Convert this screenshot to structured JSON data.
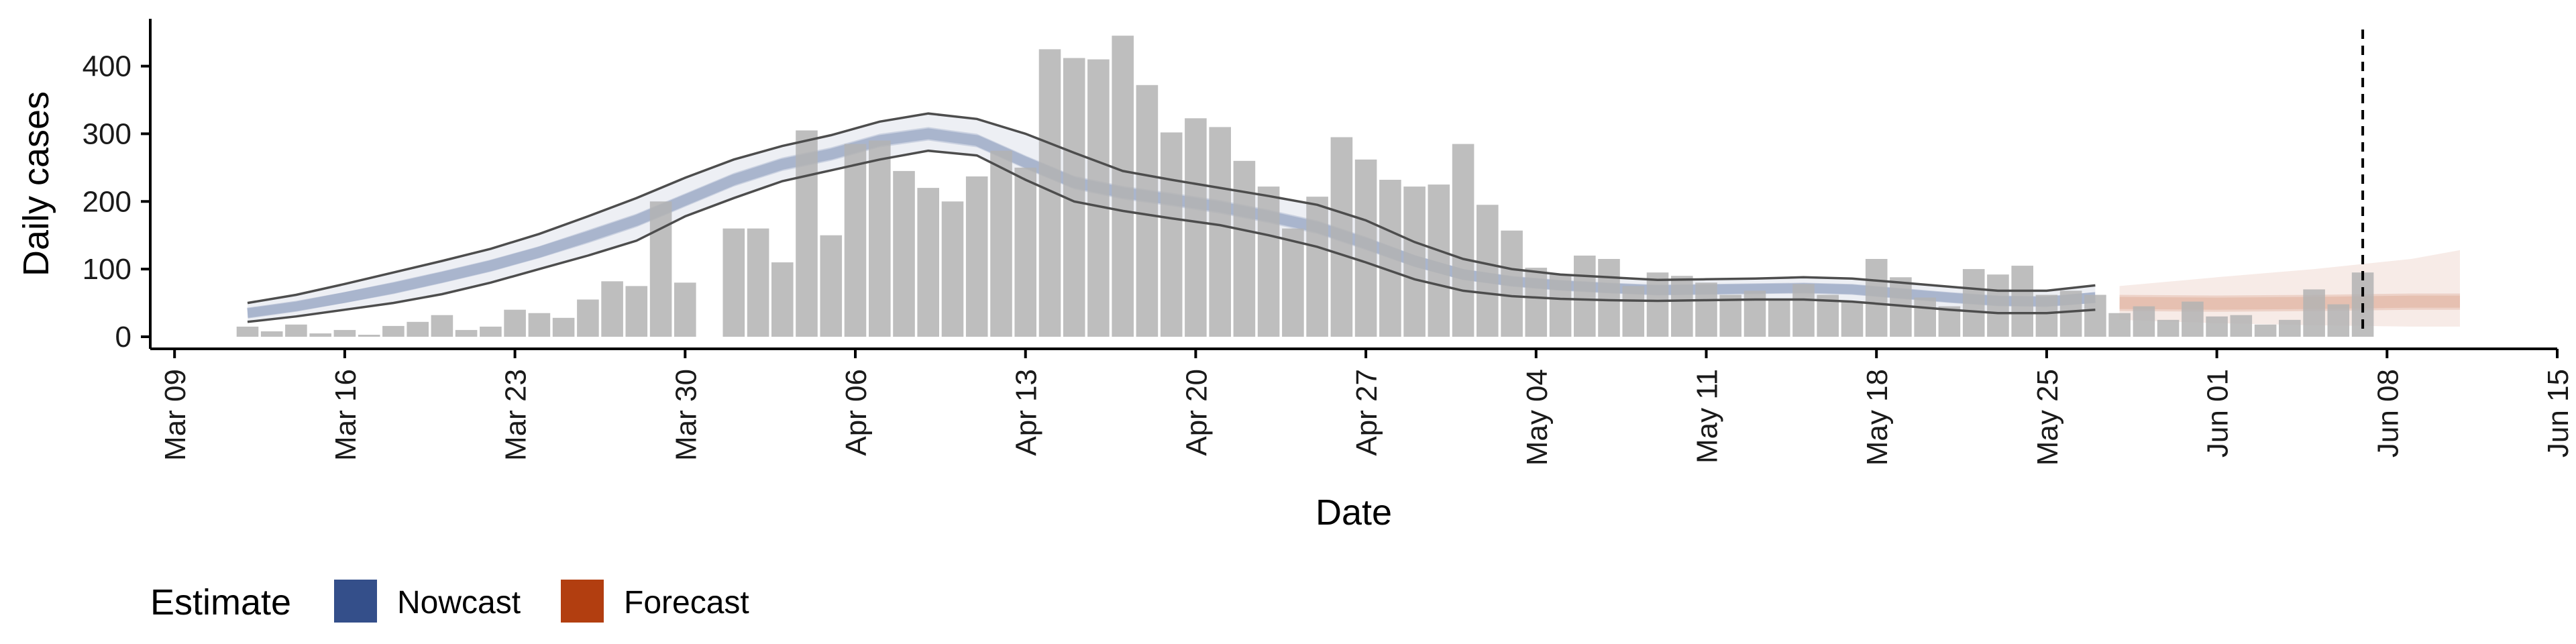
{
  "chart_data": {
    "type": "bar",
    "title": "",
    "xlabel": "Date",
    "ylabel": "Daily cases",
    "ylim": [
      0,
      470
    ],
    "xlim": [
      "2020-03-08",
      "2020-06-15"
    ],
    "yticks": [
      0,
      100,
      200,
      300,
      400
    ],
    "xticks": [
      {
        "date": "2020-03-09",
        "label": "Mar 09"
      },
      {
        "date": "2020-03-16",
        "label": "Mar 16"
      },
      {
        "date": "2020-03-23",
        "label": "Mar 23"
      },
      {
        "date": "2020-03-30",
        "label": "Mar 30"
      },
      {
        "date": "2020-04-06",
        "label": "Apr 06"
      },
      {
        "date": "2020-04-13",
        "label": "Apr 13"
      },
      {
        "date": "2020-04-20",
        "label": "Apr 20"
      },
      {
        "date": "2020-04-27",
        "label": "Apr 27"
      },
      {
        "date": "2020-05-04",
        "label": "May 04"
      },
      {
        "date": "2020-05-11",
        "label": "May 11"
      },
      {
        "date": "2020-05-18",
        "label": "May 18"
      },
      {
        "date": "2020-05-25",
        "label": "May 25"
      },
      {
        "date": "2020-06-01",
        "label": "Jun 01"
      },
      {
        "date": "2020-06-08",
        "label": "Jun 08"
      },
      {
        "date": "2020-06-15",
        "label": "Jun 15"
      }
    ],
    "grid": false,
    "bar_color": "#b3b3b3",
    "bars": {
      "dates": [
        "2020-03-12",
        "2020-03-13",
        "2020-03-14",
        "2020-03-15",
        "2020-03-16",
        "2020-03-17",
        "2020-03-18",
        "2020-03-19",
        "2020-03-20",
        "2020-03-21",
        "2020-03-22",
        "2020-03-23",
        "2020-03-24",
        "2020-03-25",
        "2020-03-26",
        "2020-03-27",
        "2020-03-28",
        "2020-03-29",
        "2020-03-30",
        "2020-03-31",
        "2020-04-01",
        "2020-04-02",
        "2020-04-03",
        "2020-04-04",
        "2020-04-05",
        "2020-04-06",
        "2020-04-07",
        "2020-04-08",
        "2020-04-09",
        "2020-04-10",
        "2020-04-11",
        "2020-04-12",
        "2020-04-13",
        "2020-04-14",
        "2020-04-15",
        "2020-04-16",
        "2020-04-17",
        "2020-04-18",
        "2020-04-19",
        "2020-04-20",
        "2020-04-21",
        "2020-04-22",
        "2020-04-23",
        "2020-04-24",
        "2020-04-25",
        "2020-04-26",
        "2020-04-27",
        "2020-04-28",
        "2020-04-29",
        "2020-04-30",
        "2020-05-01",
        "2020-05-02",
        "2020-05-03",
        "2020-05-04",
        "2020-05-05",
        "2020-05-06",
        "2020-05-07",
        "2020-05-08",
        "2020-05-09",
        "2020-05-10",
        "2020-05-11",
        "2020-05-12",
        "2020-05-13",
        "2020-05-14",
        "2020-05-15",
        "2020-05-16",
        "2020-05-17",
        "2020-05-18",
        "2020-05-19",
        "2020-05-20",
        "2020-05-21",
        "2020-05-22",
        "2020-05-23",
        "2020-05-24",
        "2020-05-25",
        "2020-05-26",
        "2020-05-27",
        "2020-05-28",
        "2020-05-29",
        "2020-05-30",
        "2020-05-31",
        "2020-06-01",
        "2020-06-02",
        "2020-06-03",
        "2020-06-04",
        "2020-06-05",
        "2020-06-06",
        "2020-06-07"
      ],
      "values": [
        15,
        8,
        18,
        5,
        10,
        3,
        16,
        22,
        32,
        10,
        15,
        40,
        35,
        28,
        55,
        82,
        75,
        200,
        80,
        0,
        160,
        160,
        110,
        305,
        150,
        285,
        290,
        245,
        220,
        200,
        237,
        275,
        250,
        425,
        412,
        410,
        445,
        372,
        302,
        323,
        310,
        260,
        222,
        160,
        207,
        295,
        262,
        232,
        222,
        225,
        285,
        195,
        157,
        102,
        92,
        120,
        115,
        75,
        95,
        90,
        80,
        62,
        68,
        55,
        78,
        62,
        52,
        115,
        88,
        58,
        45,
        100,
        92,
        105,
        62,
        68,
        62,
        35,
        45,
        25,
        52,
        30,
        32,
        18,
        25,
        70,
        48,
        95
      ]
    },
    "annotations": [
      {
        "type": "vline",
        "x": "2020-06-07",
        "style": "dashed"
      }
    ],
    "legend": {
      "title": "Estimate",
      "placement": "bottom-left",
      "entries": [
        {
          "label": "Nowcast",
          "color": "#344f8a"
        },
        {
          "label": "Forecast",
          "color": "#b23e10"
        }
      ]
    },
    "nowcast": {
      "color": "#344f8a",
      "dates": [
        "2020-03-12",
        "2020-03-14",
        "2020-03-16",
        "2020-03-18",
        "2020-03-20",
        "2020-03-22",
        "2020-03-24",
        "2020-03-26",
        "2020-03-28",
        "2020-03-30",
        "2020-04-01",
        "2020-04-03",
        "2020-04-05",
        "2020-04-07",
        "2020-04-09",
        "2020-04-11",
        "2020-04-13",
        "2020-04-15",
        "2020-04-17",
        "2020-04-19",
        "2020-04-21",
        "2020-04-23",
        "2020-04-25",
        "2020-04-27",
        "2020-04-29",
        "2020-05-01",
        "2020-05-03",
        "2020-05-05",
        "2020-05-07",
        "2020-05-09",
        "2020-05-11",
        "2020-05-13",
        "2020-05-15",
        "2020-05-17",
        "2020-05-19",
        "2020-05-21",
        "2020-05-23",
        "2020-05-25",
        "2020-05-27"
      ],
      "median": [
        35,
        45,
        58,
        72,
        88,
        105,
        125,
        148,
        172,
        202,
        232,
        255,
        270,
        290,
        300,
        290,
        258,
        228,
        213,
        203,
        192,
        178,
        162,
        138,
        112,
        92,
        82,
        76,
        72,
        69,
        70,
        71,
        72,
        70,
        64,
        58,
        53,
        52,
        58
      ],
      "inner_lower": [
        28,
        38,
        50,
        63,
        79,
        96,
        116,
        138,
        162,
        192,
        222,
        245,
        260,
        280,
        290,
        280,
        248,
        218,
        203,
        193,
        182,
        168,
        152,
        128,
        103,
        84,
        75,
        69,
        65,
        62,
        63,
        64,
        65,
        63,
        57,
        51,
        46,
        45,
        50
      ],
      "inner_upper": [
        42,
        52,
        66,
        81,
        97,
        114,
        134,
        158,
        182,
        212,
        242,
        265,
        280,
        300,
        310,
        300,
        268,
        238,
        223,
        213,
        202,
        188,
        172,
        148,
        121,
        100,
        89,
        83,
        79,
        76,
        77,
        78,
        79,
        77,
        71,
        65,
        60,
        59,
        66
      ],
      "outer_lower": [
        22,
        30,
        40,
        50,
        63,
        80,
        100,
        120,
        142,
        178,
        205,
        230,
        246,
        262,
        275,
        268,
        232,
        200,
        186,
        175,
        165,
        150,
        133,
        110,
        85,
        68,
        60,
        56,
        54,
        53,
        54,
        55,
        55,
        52,
        46,
        40,
        35,
        35,
        40
      ],
      "outer_upper": [
        50,
        62,
        78,
        95,
        112,
        130,
        152,
        178,
        205,
        235,
        262,
        282,
        298,
        318,
        330,
        322,
        300,
        272,
        245,
        232,
        220,
        208,
        195,
        172,
        140,
        115,
        100,
        92,
        88,
        84,
        85,
        86,
        88,
        86,
        80,
        74,
        68,
        68,
        76
      ]
    },
    "forecast": {
      "color": "#b23e10",
      "dates": [
        "2020-05-28",
        "2020-06-01",
        "2020-06-05",
        "2020-06-09",
        "2020-06-11"
      ],
      "median": [
        50,
        49,
        50,
        52,
        52
      ],
      "inner_lower": [
        38,
        37,
        38,
        40,
        40
      ],
      "inner_upper": [
        62,
        61,
        62,
        64,
        64
      ],
      "outer_lower": [
        25,
        20,
        17,
        15,
        15
      ],
      "outer_upper": [
        75,
        88,
        100,
        115,
        128
      ]
    }
  }
}
